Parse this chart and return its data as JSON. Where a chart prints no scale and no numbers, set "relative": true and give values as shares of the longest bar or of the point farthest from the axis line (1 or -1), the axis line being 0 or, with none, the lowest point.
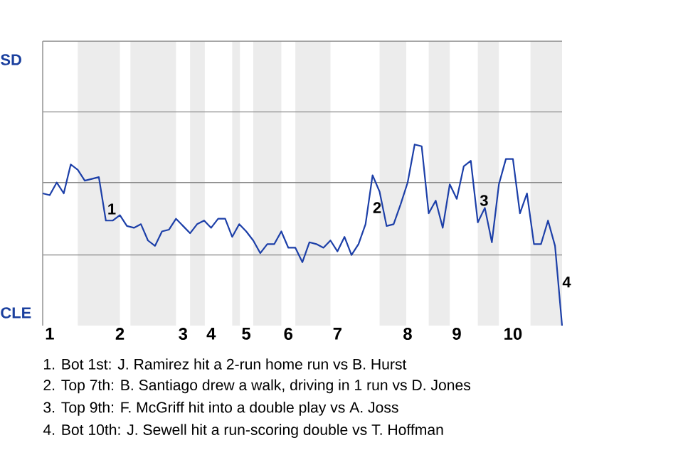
{
  "chart_data": {
    "type": "line",
    "relative": true,
    "categories": [
      null,
      "1",
      null,
      null,
      null,
      null,
      null,
      null,
      null,
      null,
      null,
      "2",
      null,
      null,
      null,
      null,
      null,
      null,
      null,
      null,
      "3",
      null,
      null,
      null,
      "4",
      null,
      null,
      null,
      null,
      "5",
      null,
      null,
      null,
      null,
      null,
      "6",
      null,
      null,
      null,
      null,
      null,
      null,
      "7",
      null,
      null,
      null,
      null,
      null,
      null,
      null,
      null,
      null,
      "8",
      null,
      null,
      null,
      null,
      null,
      null,
      "9",
      null,
      null,
      null,
      null,
      null,
      null,
      null,
      "10",
      null,
      null,
      null,
      null,
      null,
      null,
      null
    ],
    "series": [
      {
        "color": "#1c3fa8",
        "values": [
          0.73,
          0.72,
          0.79,
          0.73,
          0.89,
          0.86,
          0.8,
          0.81,
          0.82,
          0.58,
          0.58,
          0.61,
          0.55,
          0.54,
          0.56,
          0.47,
          0.44,
          0.52,
          0.53,
          0.59,
          0.55,
          0.51,
          0.56,
          0.58,
          0.54,
          0.59,
          0.59,
          0.49,
          0.56,
          0.52,
          0.47,
          0.4,
          0.45,
          0.45,
          0.52,
          0.43,
          0.43,
          0.35,
          0.46,
          0.45,
          0.43,
          0.47,
          0.41,
          0.49,
          0.39,
          0.45,
          0.56,
          0.83,
          0.74,
          0.55,
          0.56,
          0.67,
          0.79,
          1,
          0.99,
          0.62,
          0.69,
          0.54,
          0.78,
          0.7,
          0.88,
          0.91,
          0.57,
          0.65,
          0.46,
          0.78,
          0.92,
          0.92,
          0.62,
          0.73,
          0.45,
          0.45,
          0.58,
          0.44,
          0
        ]
      }
    ],
    "ref_lines": [
      {
        "axis": "y",
        "value": 0.39,
        "color": "#888888"
      },
      {
        "axis": "y",
        "value": 0.79,
        "color": "#888888"
      },
      {
        "axis": "y",
        "value": 1.18,
        "color": "#888888"
      },
      {
        "axis": "y",
        "value": 1.57,
        "color": "#888888"
      }
    ],
    "annotations": [
      "SD",
      "CLE",
      "1",
      "2",
      "3",
      "4",
      "1. Bot 1st: J. Ramirez hit a 2-run home run vs B. Hurst",
      "2. Top 7th: B. Santiago drew a walk, driving in 1 run vs D. Jones",
      "3. Top 9th: F. McGriff hit into a double play vs A. Joss",
      "4. Bot 10th: J. Sewell hit a run-scoring double vs T. Hoffman"
    ]
  }
}
